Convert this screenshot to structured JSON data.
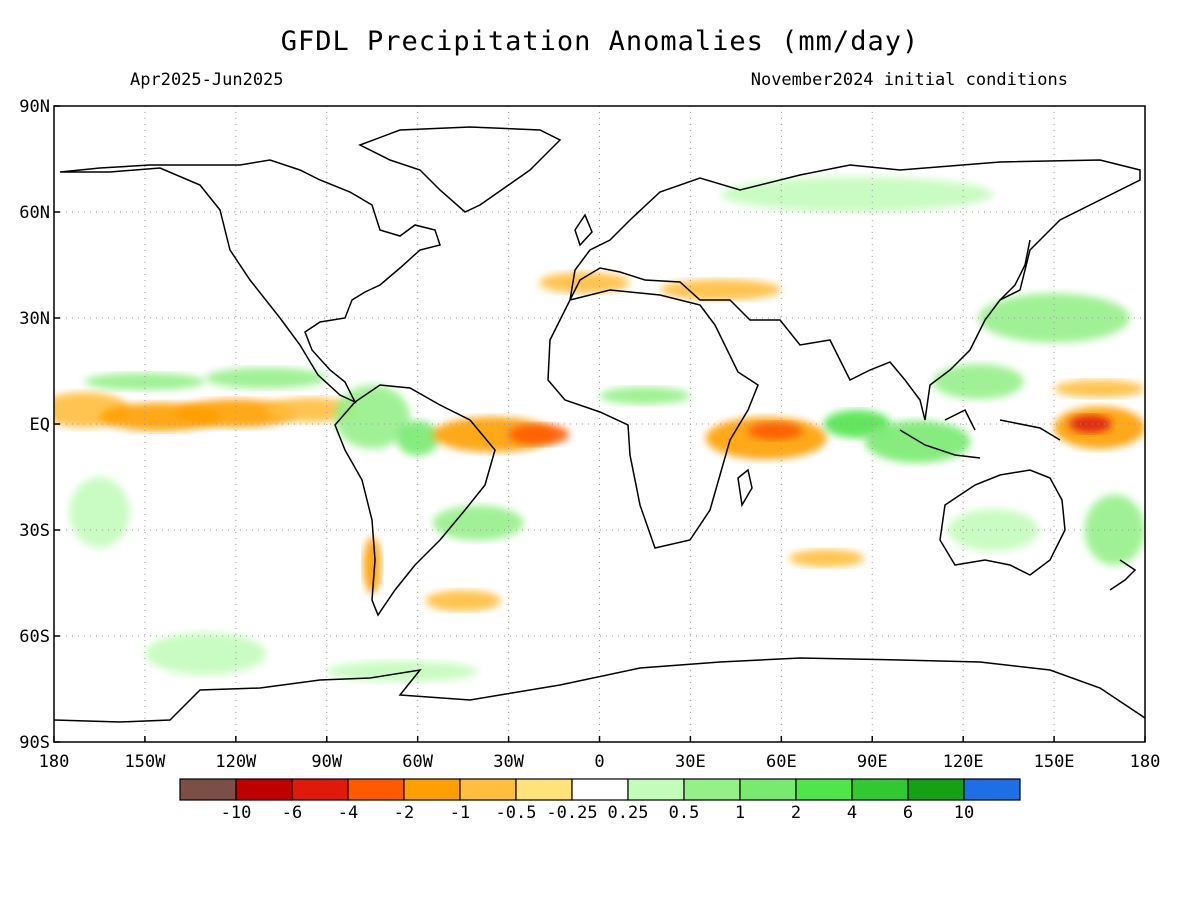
{
  "header": {
    "title": "GFDL Precipitation Anomalies (mm/day)",
    "period": "Apr2025-Jun2025",
    "initial": "November2024 initial conditions"
  },
  "axes": {
    "x_ticks": [
      "180",
      "150W",
      "120W",
      "90W",
      "60W",
      "30W",
      "0",
      "30E",
      "60E",
      "90E",
      "120E",
      "150E",
      "180"
    ],
    "x_values": [
      -180,
      -150,
      -120,
      -90,
      -60,
      -30,
      0,
      30,
      60,
      90,
      120,
      150,
      180
    ],
    "y_ticks": [
      "90N",
      "60N",
      "30N",
      "EQ",
      "30S",
      "60S",
      "90S"
    ],
    "y_values": [
      90,
      60,
      30,
      0,
      -30,
      -60,
      -90
    ],
    "xlim": [
      -180,
      180
    ],
    "ylim": [
      -90,
      90
    ],
    "grid": true
  },
  "colorbar": {
    "colors": [
      "#7b4f45",
      "#c00000",
      "#e01a0a",
      "#ff5a00",
      "#ff9f00",
      "#ffbe3d",
      "#ffe27a",
      "#ffffff",
      "#c4fcbc",
      "#96f08a",
      "#78ea70",
      "#50e64a",
      "#32c832",
      "#16a014",
      "#1e6ee6"
    ],
    "labels": [
      "-10",
      "-6",
      "-4",
      "-2",
      "-1",
      "-0.5",
      "-0.25",
      "0.25",
      "0.5",
      "1",
      "2",
      "4",
      "6",
      "10"
    ]
  },
  "anomalies": [
    {
      "lon": -170,
      "lat": 4,
      "w": 30,
      "h": 10,
      "c": 5
    },
    {
      "lon": -145,
      "lat": 2,
      "w": 40,
      "h": 8,
      "c": 4
    },
    {
      "lon": -120,
      "lat": 3,
      "w": 40,
      "h": 8,
      "c": 4
    },
    {
      "lon": -95,
      "lat": 4,
      "w": 30,
      "h": 7,
      "c": 5
    },
    {
      "lon": -150,
      "lat": 12,
      "w": 40,
      "h": 5,
      "c": 9
    },
    {
      "lon": -110,
      "lat": 13,
      "w": 40,
      "h": 6,
      "c": 9
    },
    {
      "lon": -75,
      "lat": 2,
      "w": 25,
      "h": 18,
      "c": 9
    },
    {
      "lon": -60,
      "lat": -4,
      "w": 14,
      "h": 10,
      "c": 10
    },
    {
      "lon": -35,
      "lat": -3,
      "w": 40,
      "h": 10,
      "c": 4
    },
    {
      "lon": -20,
      "lat": -3,
      "w": 20,
      "h": 6,
      "c": 3
    },
    {
      "lon": -40,
      "lat": -28,
      "w": 30,
      "h": 10,
      "c": 9
    },
    {
      "lon": 15,
      "lat": 8,
      "w": 30,
      "h": 5,
      "c": 9
    },
    {
      "lon": 55,
      "lat": -4,
      "w": 40,
      "h": 12,
      "c": 4
    },
    {
      "lon": 58,
      "lat": -2,
      "w": 18,
      "h": 5,
      "c": 3
    },
    {
      "lon": 85,
      "lat": 0,
      "w": 22,
      "h": 8,
      "c": 11
    },
    {
      "lon": 105,
      "lat": -5,
      "w": 35,
      "h": 12,
      "c": 10
    },
    {
      "lon": 125,
      "lat": 12,
      "w": 30,
      "h": 10,
      "c": 9
    },
    {
      "lon": 165,
      "lat": -1,
      "w": 30,
      "h": 12,
      "c": 4
    },
    {
      "lon": 162,
      "lat": 0,
      "w": 14,
      "h": 5,
      "c": 2
    },
    {
      "lon": 165,
      "lat": 10,
      "w": 30,
      "h": 5,
      "c": 5
    },
    {
      "lon": -5,
      "lat": 40,
      "w": 30,
      "h": 6,
      "c": 5
    },
    {
      "lon": 40,
      "lat": 38,
      "w": 40,
      "h": 6,
      "c": 5
    },
    {
      "lon": 85,
      "lat": 65,
      "w": 90,
      "h": 10,
      "c": 8
    },
    {
      "lon": 150,
      "lat": 30,
      "w": 50,
      "h": 14,
      "c": 9
    },
    {
      "lon": -165,
      "lat": -25,
      "w": 20,
      "h": 20,
      "c": 8
    },
    {
      "lon": -130,
      "lat": -65,
      "w": 40,
      "h": 12,
      "c": 8
    },
    {
      "lon": -65,
      "lat": -70,
      "w": 50,
      "h": 6,
      "c": 8
    },
    {
      "lon": -75,
      "lat": -40,
      "w": 6,
      "h": 16,
      "c": 4
    },
    {
      "lon": -45,
      "lat": -50,
      "w": 25,
      "h": 6,
      "c": 5
    },
    {
      "lon": 130,
      "lat": -30,
      "w": 30,
      "h": 12,
      "c": 8
    },
    {
      "lon": 170,
      "lat": -30,
      "w": 20,
      "h": 20,
      "c": 9
    },
    {
      "lon": 75,
      "lat": -38,
      "w": 25,
      "h": 5,
      "c": 5
    }
  ]
}
